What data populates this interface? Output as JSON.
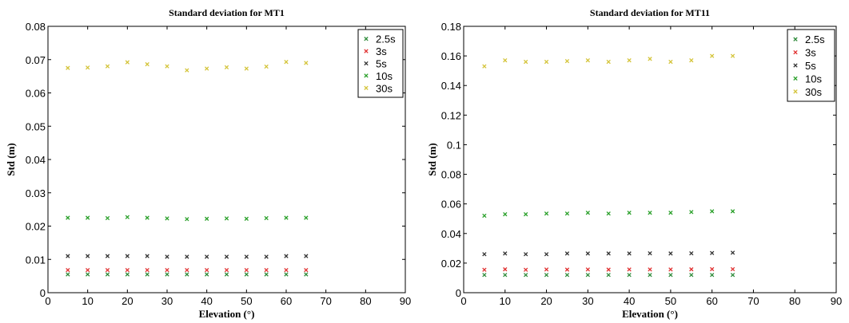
{
  "chart_data": [
    {
      "type": "scatter",
      "title": "Standard deviation for MT1",
      "xlabel": "Elevation (°)",
      "ylabel": "Std (m)",
      "xlim": [
        0,
        90
      ],
      "ylim": [
        0,
        0.08
      ],
      "xticks": [
        "0",
        "10",
        "20",
        "30",
        "40",
        "50",
        "60",
        "70",
        "80",
        "90"
      ],
      "yticks": [
        "0",
        "0.01",
        "0.02",
        "0.03",
        "0.04",
        "0.05",
        "0.06",
        "0.07",
        "0.08"
      ],
      "legend_position": "top-right",
      "marker": "x",
      "x": [
        5,
        10,
        15,
        20,
        25,
        30,
        35,
        40,
        45,
        50,
        55,
        60,
        65
      ],
      "series": [
        {
          "name": "2.5s",
          "color": "#2e8b3a",
          "values": [
            0.0055,
            0.0055,
            0.0055,
            0.0055,
            0.0055,
            0.0055,
            0.0055,
            0.0055,
            0.0055,
            0.0055,
            0.0055,
            0.0055,
            0.0055
          ]
        },
        {
          "name": "3s",
          "color": "#e03030",
          "values": [
            0.0068,
            0.0068,
            0.0068,
            0.0068,
            0.0068,
            0.0068,
            0.0068,
            0.0068,
            0.0068,
            0.0068,
            0.0068,
            0.0068,
            0.0068
          ]
        },
        {
          "name": "5s",
          "color": "#333333",
          "values": [
            0.011,
            0.011,
            0.011,
            0.011,
            0.011,
            0.0108,
            0.0108,
            0.0108,
            0.0108,
            0.0108,
            0.0108,
            0.011,
            0.011
          ]
        },
        {
          "name": "10s",
          "color": "#2aa02a",
          "values": [
            0.0225,
            0.0225,
            0.0224,
            0.0227,
            0.0225,
            0.0223,
            0.0221,
            0.0222,
            0.0223,
            0.0222,
            0.0224,
            0.0225,
            0.0225
          ]
        },
        {
          "name": "30s",
          "color": "#d4c43a",
          "values": [
            0.0675,
            0.0676,
            0.068,
            0.0692,
            0.0686,
            0.068,
            0.0668,
            0.0673,
            0.0677,
            0.0673,
            0.0679,
            0.0693,
            0.069
          ]
        }
      ]
    },
    {
      "type": "scatter",
      "title": "Standard deviation for MT11",
      "xlabel": "Elevation (°)",
      "ylabel": "Std (m)",
      "xlim": [
        0,
        90
      ],
      "ylim": [
        0,
        0.18
      ],
      "xticks": [
        "0",
        "10",
        "20",
        "30",
        "40",
        "50",
        "60",
        "70",
        "80",
        "90"
      ],
      "yticks": [
        "0",
        "0.02",
        "0.04",
        "0.06",
        "0.08",
        "0.1",
        "0.12",
        "0.14",
        "0.16",
        "0.18"
      ],
      "legend_position": "top-right",
      "marker": "x",
      "x": [
        5,
        10,
        15,
        20,
        25,
        30,
        35,
        40,
        45,
        50,
        55,
        60,
        65
      ],
      "series": [
        {
          "name": "2.5s",
          "color": "#2e8b3a",
          "values": [
            0.012,
            0.012,
            0.012,
            0.012,
            0.012,
            0.012,
            0.012,
            0.012,
            0.012,
            0.012,
            0.012,
            0.012,
            0.012
          ]
        },
        {
          "name": "3s",
          "color": "#e03030",
          "values": [
            0.0155,
            0.0158,
            0.0155,
            0.0157,
            0.0156,
            0.0157,
            0.0156,
            0.0157,
            0.0157,
            0.0157,
            0.0158,
            0.0159,
            0.0159
          ]
        },
        {
          "name": "5s",
          "color": "#333333",
          "values": [
            0.026,
            0.0265,
            0.026,
            0.026,
            0.0265,
            0.0265,
            0.0265,
            0.0265,
            0.0266,
            0.0265,
            0.0266,
            0.0268,
            0.027
          ]
        },
        {
          "name": "10s",
          "color": "#2aa02a",
          "values": [
            0.052,
            0.053,
            0.053,
            0.0535,
            0.0535,
            0.054,
            0.0535,
            0.054,
            0.054,
            0.054,
            0.0545,
            0.055,
            0.055
          ]
        },
        {
          "name": "30s",
          "color": "#d4c43a",
          "values": [
            0.153,
            0.157,
            0.156,
            0.156,
            0.1565,
            0.157,
            0.156,
            0.157,
            0.158,
            0.156,
            0.157,
            0.16,
            0.16
          ]
        }
      ]
    }
  ]
}
